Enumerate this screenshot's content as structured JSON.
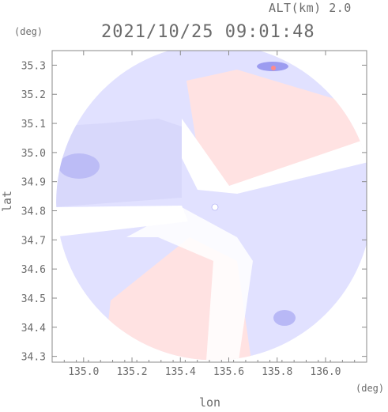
{
  "header": {
    "altitude_label": "ALT(km) 2.0",
    "timestamp": "2021/10/25 09:01:48"
  },
  "axes": {
    "ylabel": "lat",
    "xlabel": "lon",
    "yunit": "(deg)",
    "xunit": "(deg)"
  },
  "chart_data": {
    "type": "heatmap",
    "xlabel": "lon",
    "ylabel": "lat",
    "xlim": [
      134.87,
      136.17
    ],
    "ylim": [
      34.28,
      35.35
    ],
    "x_ticks": [
      {
        "value": 135.0,
        "label": "135.0"
      },
      {
        "value": 135.2,
        "label": "135.2"
      },
      {
        "value": 135.4,
        "label": "135.4"
      },
      {
        "value": 135.6,
        "label": "135.6"
      },
      {
        "value": 135.8,
        "label": "135.8"
      },
      {
        "value": 136.0,
        "label": "136.0"
      }
    ],
    "y_ticks": [
      {
        "value": 34.3,
        "label": "34.3"
      },
      {
        "value": 34.4,
        "label": "34.4"
      },
      {
        "value": 34.5,
        "label": "34.5"
      },
      {
        "value": 34.6,
        "label": "34.6"
      },
      {
        "value": 34.7,
        "label": "34.7"
      },
      {
        "value": 34.8,
        "label": "34.8"
      },
      {
        "value": 34.9,
        "label": "34.9"
      },
      {
        "value": 35.0,
        "label": "35.0"
      },
      {
        "value": 35.1,
        "label": "35.1"
      },
      {
        "value": 35.2,
        "label": "35.2"
      },
      {
        "value": 35.3,
        "label": "35.3"
      }
    ],
    "radar_center": {
      "lon": 135.54,
      "lat": 34.83
    },
    "colors": {
      "approaching": "#e1e1ff",
      "approaching_strong": "#9c9cf0",
      "receding": "#ffe2e2",
      "receding_strong": "#ff8a8a",
      "axis": "#8a8a8a"
    }
  }
}
